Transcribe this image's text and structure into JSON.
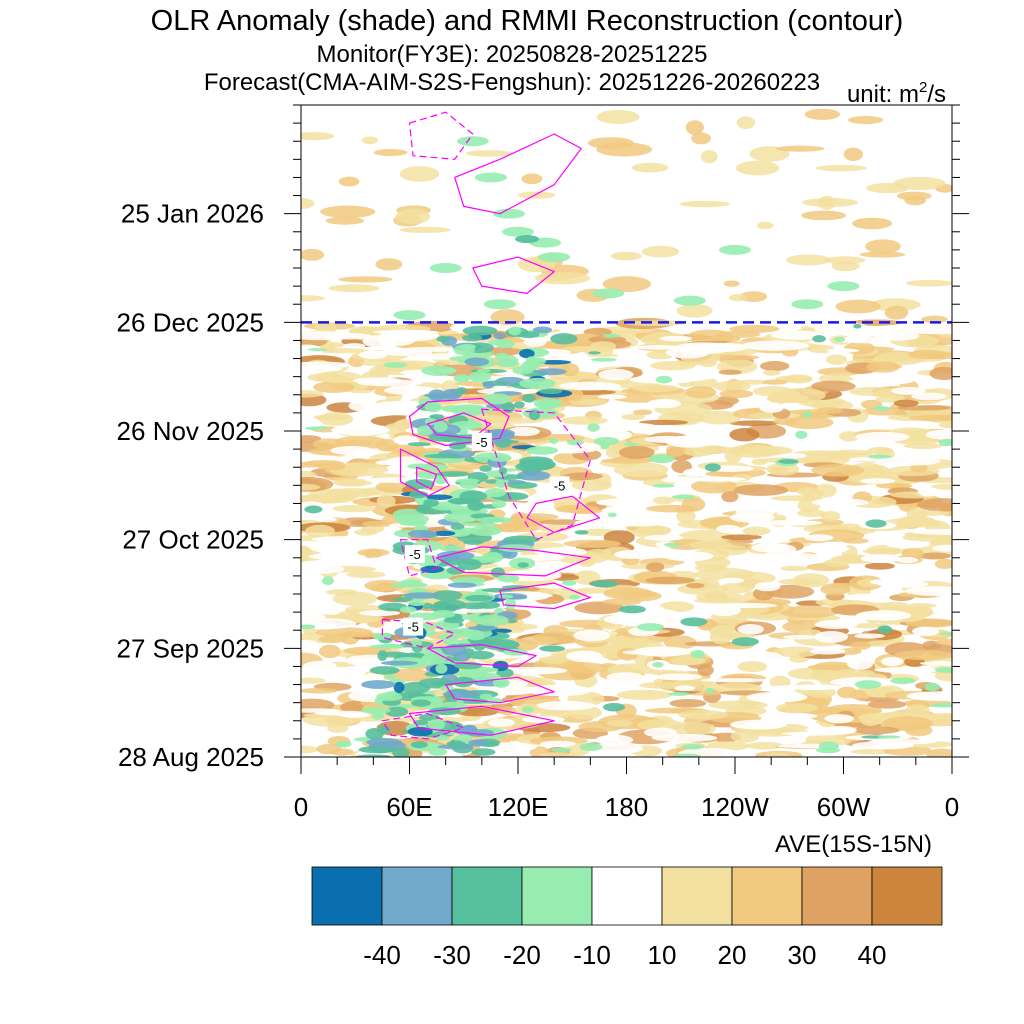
{
  "chart_data": {
    "type": "heatmap",
    "title": "OLR Anomaly (shade) and RMMI Reconstruction (contour)",
    "subtitle_monitor": "Monitor(FY3E): 20250828-20251225",
    "subtitle_forecast": "Forecast(CMA-AIM-S2S-Fengshun): 20251226-20260223",
    "unit_text": "unit: m",
    "unit_sup": "2",
    "unit_suffix": "/s",
    "x_tick_labels": [
      "0",
      "60E",
      "120E",
      "180",
      "120W",
      "60W",
      "0"
    ],
    "x_ticks_deg": [
      0,
      60,
      120,
      180,
      240,
      300,
      360
    ],
    "xlim": [
      0,
      360
    ],
    "y_tick_labels": [
      "28 Aug 2025",
      "27 Sep 2025",
      "27 Oct 2025",
      "26 Nov 2025",
      "26 Dec 2025",
      "25 Jan 2026"
    ],
    "y_ticks_day": [
      0,
      30,
      60,
      90,
      120,
      150
    ],
    "ylim": [
      0,
      180
    ],
    "forecast_start_day": 120,
    "xlabel_right": "AVE(15S-15N)",
    "colorbar": {
      "levels": [
        "-40",
        "-30",
        "-20",
        "-10",
        "10",
        "20",
        "30",
        "40"
      ],
      "colors": [
        "#0a6fae",
        "#71a9cb",
        "#56bf9c",
        "#97edb0",
        "#ffffff",
        "#f3e0a0",
        "#f1c97f",
        "#dea362",
        "#cd843d"
      ]
    },
    "contour_labels": [
      {
        "text": "-5",
        "lon": 100,
        "day": 87
      },
      {
        "text": "-5",
        "lon": 143,
        "day": 75
      },
      {
        "text": "-5",
        "lon": 63,
        "day": 56
      },
      {
        "text": "-5",
        "lon": 62,
        "day": 36
      }
    ],
    "colors": {
      "contour": "#ff00ff",
      "forecast_line": "#1a1ae6",
      "axis": "#000000"
    }
  }
}
